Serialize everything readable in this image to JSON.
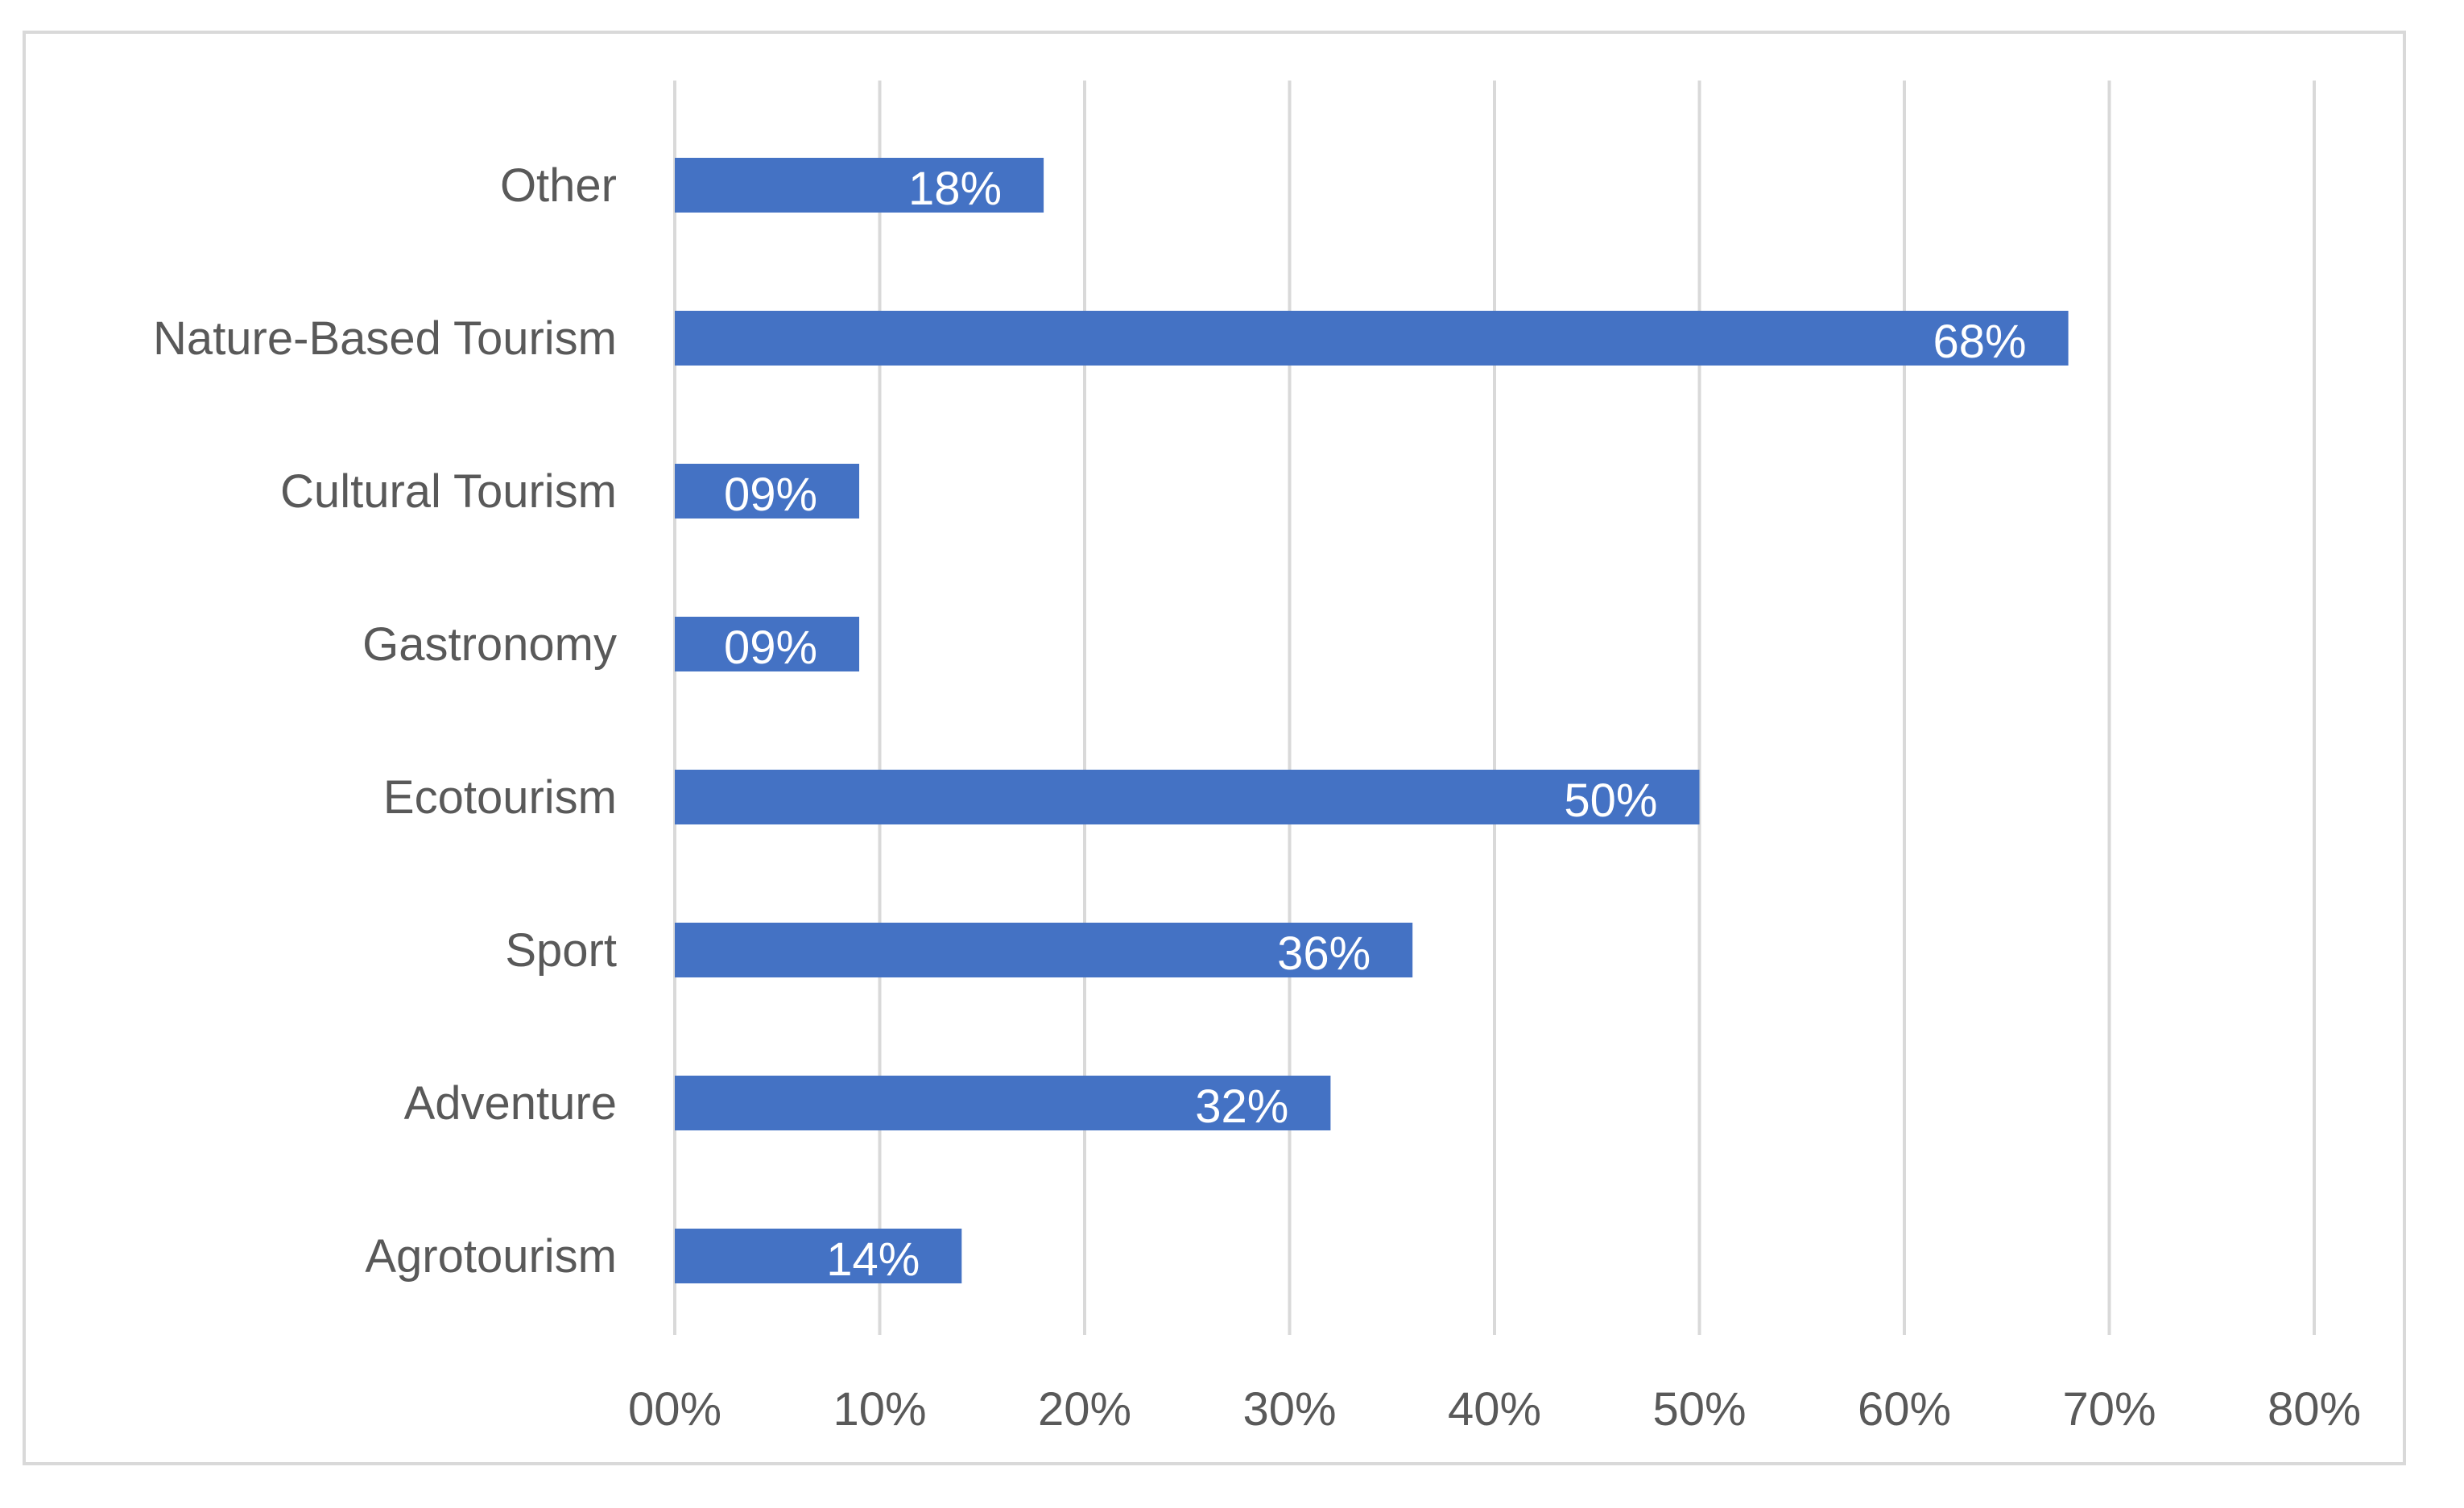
{
  "chart_data": {
    "type": "bar",
    "orientation": "horizontal",
    "categories": [
      "Other",
      "Nature-Based Tourism",
      "Cultural Tourism",
      "Gastronomy",
      "Ecotourism",
      "Sport",
      "Adventure",
      "Agrotourism"
    ],
    "values": [
      18,
      68,
      9,
      9,
      50,
      36,
      32,
      14
    ],
    "data_labels": [
      "18%",
      "68%",
      "09%",
      "09%",
      "50%",
      "36%",
      "32%",
      "14%"
    ],
    "xlim": [
      0,
      80
    ],
    "x_ticks": [
      0,
      10,
      20,
      30,
      40,
      50,
      60,
      70,
      80
    ],
    "x_tick_labels": [
      "00%",
      "10%",
      "20%",
      "30%",
      "40%",
      "50%",
      "60%",
      "70%",
      "80%"
    ],
    "title": "",
    "xlabel": "",
    "ylabel": "",
    "grid": "vertical",
    "legend": "none",
    "bar_color": "#4472c4",
    "grid_color": "#d9d9d9",
    "text_color": "#595959",
    "data_label_color": "#ffffff"
  }
}
